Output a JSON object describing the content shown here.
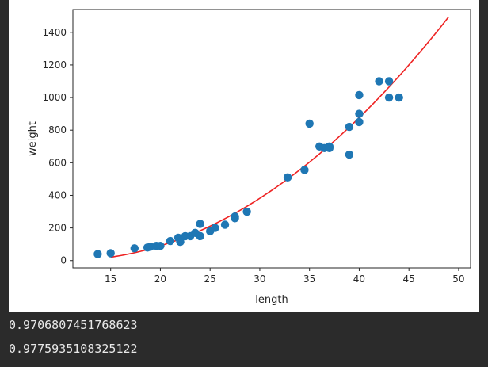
{
  "chart_data": {
    "type": "scatter",
    "xlabel": "length",
    "ylabel": "weight",
    "xlim": [
      11.2,
      51.2
    ],
    "ylim": [
      -45,
      1540
    ],
    "xticks": [
      15,
      20,
      25,
      30,
      35,
      40,
      45,
      50
    ],
    "yticks": [
      0,
      200,
      400,
      600,
      800,
      1000,
      1200,
      1400
    ],
    "grid": false,
    "marker_color": "#1f77b4",
    "line_color": "#ee2222",
    "points": [
      {
        "x": 13.7,
        "y": 40
      },
      {
        "x": 15.0,
        "y": 45
      },
      {
        "x": 17.4,
        "y": 75
      },
      {
        "x": 18.7,
        "y": 80
      },
      {
        "x": 19.0,
        "y": 85
      },
      {
        "x": 19.6,
        "y": 90
      },
      {
        "x": 20.0,
        "y": 90
      },
      {
        "x": 21.0,
        "y": 120
      },
      {
        "x": 21.8,
        "y": 140
      },
      {
        "x": 22.0,
        "y": 115
      },
      {
        "x": 22.5,
        "y": 150
      },
      {
        "x": 23.0,
        "y": 150
      },
      {
        "x": 23.5,
        "y": 170
      },
      {
        "x": 24.0,
        "y": 225
      },
      {
        "x": 24.0,
        "y": 150
      },
      {
        "x": 25.0,
        "y": 180
      },
      {
        "x": 25.5,
        "y": 200
      },
      {
        "x": 26.5,
        "y": 220
      },
      {
        "x": 27.5,
        "y": 260
      },
      {
        "x": 27.5,
        "y": 270
      },
      {
        "x": 28.7,
        "y": 300
      },
      {
        "x": 32.8,
        "y": 510
      },
      {
        "x": 34.5,
        "y": 556
      },
      {
        "x": 35.0,
        "y": 840
      },
      {
        "x": 36.0,
        "y": 700
      },
      {
        "x": 36.5,
        "y": 690
      },
      {
        "x": 37.0,
        "y": 700
      },
      {
        "x": 37.0,
        "y": 690
      },
      {
        "x": 39.0,
        "y": 650
      },
      {
        "x": 39.0,
        "y": 820
      },
      {
        "x": 40.0,
        "y": 1015
      },
      {
        "x": 40.0,
        "y": 900
      },
      {
        "x": 40.0,
        "y": 850
      },
      {
        "x": 42.0,
        "y": 1100
      },
      {
        "x": 43.0,
        "y": 1100
      },
      {
        "x": 43.0,
        "y": 1000
      },
      {
        "x": 44.0,
        "y": 1000
      }
    ],
    "fit_curve": {
      "type": "poly2",
      "coefficients": [
        1.01433211,
        -21.55792498,
        116.0502107827827
      ],
      "x_range": [
        15,
        49
      ]
    }
  },
  "output": {
    "lines": [
      "0.9706807451768623",
      "0.9775935108325122"
    ]
  }
}
